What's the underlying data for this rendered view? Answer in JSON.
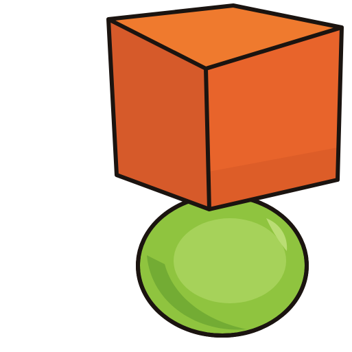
{
  "scene": {
    "background": "#ffffff",
    "outline_color": "#1b1410",
    "cube": {
      "name": "cube",
      "front_color": "#e8642b",
      "left_color": "#d65a2a",
      "top_color": "#ef7a2e",
      "shade_color": "#c94f22"
    },
    "sphere": {
      "name": "sphere",
      "base_color": "#8fc43f",
      "shade_color": "#6fa832",
      "highlight_color": "#bfe07a",
      "core_color": "#a6d25a"
    }
  }
}
